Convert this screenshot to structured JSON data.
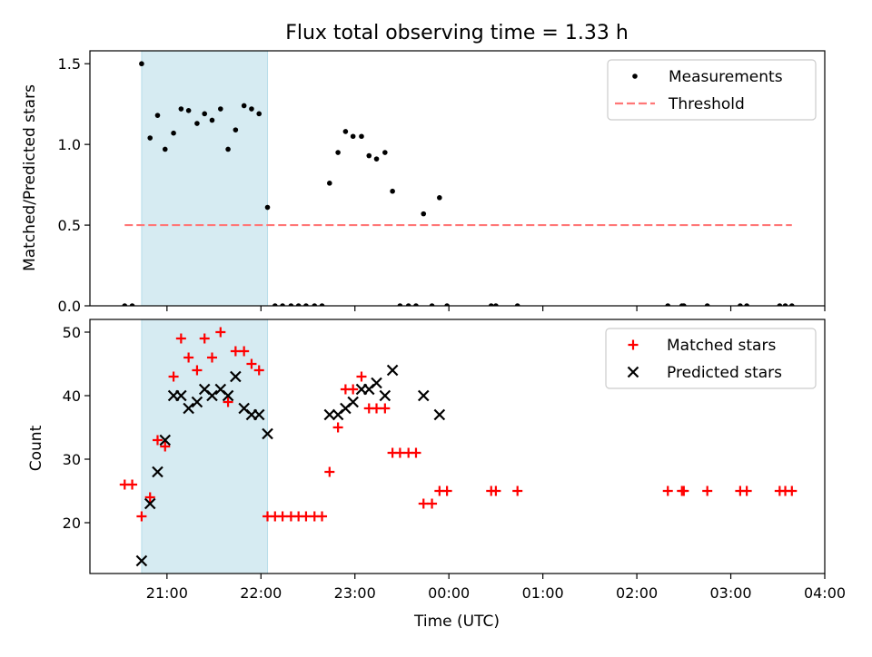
{
  "colors": {
    "band": "#add8e6",
    "threshold": "#ff7777",
    "matched": "#ff0000",
    "predicted": "#000000",
    "measurements": "#000000"
  },
  "chart_data": [
    {
      "type": "scatter",
      "title": "Flux total observing time = 1.33 h",
      "xlabel": "",
      "ylabel": "Matched/Predicted stars",
      "ylim": [
        0,
        1.58
      ],
      "yticks": [
        0.0,
        0.5,
        1.0,
        1.5
      ],
      "ytick_labels": [
        "0.0",
        "0.5",
        "1.0",
        "1.5"
      ],
      "x_unit": "hours since 00:00 of the first night; ticks labelled as clock time",
      "shaded_span": [
        20.73,
        22.07
      ],
      "legend_position": "top-right",
      "series": [
        {
          "name": "Measurements",
          "marker": "dot",
          "points": [
            [
              20.55,
              0.0
            ],
            [
              20.63,
              0.0
            ],
            [
              20.73,
              1.5
            ],
            [
              20.82,
              1.04
            ],
            [
              20.9,
              1.18
            ],
            [
              20.98,
              0.97
            ],
            [
              21.07,
              1.07
            ],
            [
              21.15,
              1.22
            ],
            [
              21.23,
              1.21
            ],
            [
              21.32,
              1.13
            ],
            [
              21.4,
              1.19
            ],
            [
              21.48,
              1.15
            ],
            [
              21.57,
              1.22
            ],
            [
              21.65,
              0.97
            ],
            [
              21.73,
              1.09
            ],
            [
              21.82,
              1.24
            ],
            [
              21.9,
              1.22
            ],
            [
              21.98,
              1.19
            ],
            [
              22.07,
              0.61
            ],
            [
              22.15,
              0.0
            ],
            [
              22.23,
              0.0
            ],
            [
              22.32,
              0.0
            ],
            [
              22.4,
              0.0
            ],
            [
              22.48,
              0.0
            ],
            [
              22.57,
              0.0
            ],
            [
              22.65,
              0.0
            ],
            [
              22.73,
              0.76
            ],
            [
              22.82,
              0.95
            ],
            [
              22.9,
              1.08
            ],
            [
              22.98,
              1.05
            ],
            [
              23.07,
              1.05
            ],
            [
              23.15,
              0.93
            ],
            [
              23.23,
              0.91
            ],
            [
              23.32,
              0.95
            ],
            [
              23.4,
              0.71
            ],
            [
              23.48,
              0.0
            ],
            [
              23.57,
              0.0
            ],
            [
              23.65,
              0.0
            ],
            [
              23.73,
              0.57
            ],
            [
              23.82,
              0.0
            ],
            [
              23.9,
              0.67
            ],
            [
              23.98,
              0.0
            ],
            [
              24.45,
              0.0
            ],
            [
              24.5,
              0.0
            ],
            [
              24.73,
              0.0
            ],
            [
              26.33,
              0.0
            ],
            [
              26.48,
              0.0
            ],
            [
              26.5,
              0.0
            ],
            [
              26.75,
              0.0
            ],
            [
              27.1,
              0.0
            ],
            [
              27.17,
              0.0
            ],
            [
              27.52,
              0.0
            ],
            [
              27.58,
              0.0
            ],
            [
              27.65,
              0.0
            ]
          ]
        },
        {
          "name": "Threshold",
          "marker": "dashed-line",
          "points": [
            [
              20.55,
              0.5
            ],
            [
              27.65,
              0.5
            ]
          ]
        }
      ]
    },
    {
      "type": "scatter",
      "title": "",
      "xlabel": "Time (UTC)",
      "ylabel": "Count",
      "ylim": [
        12,
        52
      ],
      "yticks": [
        20,
        30,
        40,
        50
      ],
      "ytick_labels": [
        "20",
        "30",
        "40",
        "50"
      ],
      "xlim": [
        20.18,
        28.0
      ],
      "xticks": [
        21,
        22,
        23,
        24,
        25,
        26,
        27,
        28
      ],
      "xtick_labels": [
        "21:00",
        "22:00",
        "23:00",
        "00:00",
        "01:00",
        "02:00",
        "03:00",
        "04:00"
      ],
      "shaded_span": [
        20.73,
        22.07
      ],
      "legend_position": "top-right",
      "series": [
        {
          "name": "Matched stars",
          "marker": "plus",
          "points": [
            [
              20.55,
              26
            ],
            [
              20.63,
              26
            ],
            [
              20.73,
              21
            ],
            [
              20.82,
              24
            ],
            [
              20.9,
              33
            ],
            [
              20.98,
              32
            ],
            [
              21.07,
              43
            ],
            [
              21.15,
              49
            ],
            [
              21.23,
              46
            ],
            [
              21.32,
              44
            ],
            [
              21.4,
              49
            ],
            [
              21.48,
              46
            ],
            [
              21.57,
              50
            ],
            [
              21.65,
              39
            ],
            [
              21.73,
              47
            ],
            [
              21.82,
              47
            ],
            [
              21.9,
              45
            ],
            [
              21.98,
              44
            ],
            [
              22.07,
              21
            ],
            [
              22.15,
              21
            ],
            [
              22.23,
              21
            ],
            [
              22.32,
              21
            ],
            [
              22.4,
              21
            ],
            [
              22.48,
              21
            ],
            [
              22.57,
              21
            ],
            [
              22.65,
              21
            ],
            [
              22.73,
              28
            ],
            [
              22.82,
              35
            ],
            [
              22.9,
              41
            ],
            [
              22.98,
              41
            ],
            [
              23.07,
              43
            ],
            [
              23.15,
              38
            ],
            [
              23.23,
              38
            ],
            [
              23.32,
              38
            ],
            [
              23.4,
              31
            ],
            [
              23.48,
              31
            ],
            [
              23.57,
              31
            ],
            [
              23.65,
              31
            ],
            [
              23.73,
              23
            ],
            [
              23.82,
              23
            ],
            [
              23.9,
              25
            ],
            [
              23.98,
              25
            ],
            [
              24.45,
              25
            ],
            [
              24.5,
              25
            ],
            [
              24.73,
              25
            ],
            [
              26.33,
              25
            ],
            [
              26.48,
              25
            ],
            [
              26.5,
              25
            ],
            [
              26.75,
              25
            ],
            [
              27.1,
              25
            ],
            [
              27.17,
              25
            ],
            [
              27.52,
              25
            ],
            [
              27.58,
              25
            ],
            [
              27.65,
              25
            ]
          ]
        },
        {
          "name": "Predicted stars",
          "marker": "x",
          "points": [
            [
              20.73,
              14
            ],
            [
              20.82,
              23
            ],
            [
              20.9,
              28
            ],
            [
              20.98,
              33
            ],
            [
              21.07,
              40
            ],
            [
              21.15,
              40
            ],
            [
              21.23,
              38
            ],
            [
              21.32,
              39
            ],
            [
              21.4,
              41
            ],
            [
              21.48,
              40
            ],
            [
              21.57,
              41
            ],
            [
              21.65,
              40
            ],
            [
              21.73,
              43
            ],
            [
              21.82,
              38
            ],
            [
              21.9,
              37
            ],
            [
              21.98,
              37
            ],
            [
              22.07,
              34
            ],
            [
              22.73,
              37
            ],
            [
              22.82,
              37
            ],
            [
              22.9,
              38
            ],
            [
              22.98,
              39
            ],
            [
              23.07,
              41
            ],
            [
              23.15,
              41
            ],
            [
              23.23,
              42
            ],
            [
              23.32,
              40
            ],
            [
              23.4,
              44
            ],
            [
              23.73,
              40
            ],
            [
              23.9,
              37
            ]
          ]
        }
      ]
    }
  ]
}
